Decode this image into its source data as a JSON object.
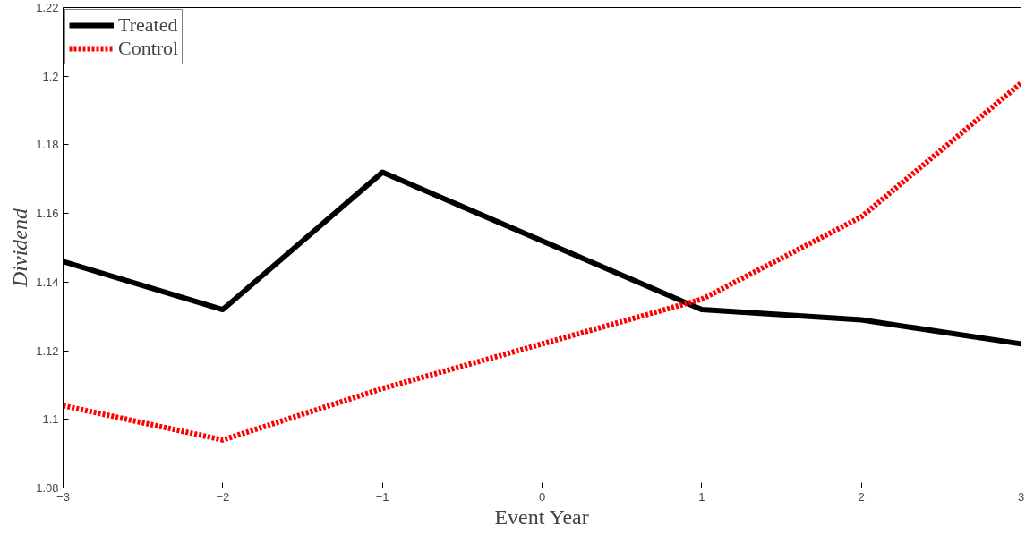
{
  "chart_data": {
    "type": "line",
    "xlabel": "Event Year",
    "ylabel": "Dividend",
    "x": [
      -3,
      -2,
      -1,
      0,
      1,
      2,
      3
    ],
    "series": [
      {
        "name": "Treated",
        "color": "#000000",
        "values": [
          1.146,
          1.132,
          1.172,
          1.152,
          1.132,
          1.129,
          1.122
        ],
        "line_style": "solid"
      },
      {
        "name": "Control",
        "color": "#ff0000",
        "values": [
          1.104,
          1.094,
          1.109,
          1.122,
          1.135,
          1.159,
          1.198
        ],
        "line_style": "dotted"
      }
    ],
    "xlim": [
      -3,
      3
    ],
    "xticks": [
      {
        "value": -3,
        "label": "−3"
      },
      {
        "value": -2,
        "label": "−2"
      },
      {
        "value": -1,
        "label": "−1"
      },
      0,
      1,
      2,
      3
    ],
    "ylim": [
      1.08,
      1.22
    ],
    "yticks": [
      1.08,
      1.1,
      1.12,
      1.14,
      1.16,
      1.18,
      1.2,
      1.22
    ],
    "grid": false,
    "legend": "top left",
    "marker": "none"
  }
}
